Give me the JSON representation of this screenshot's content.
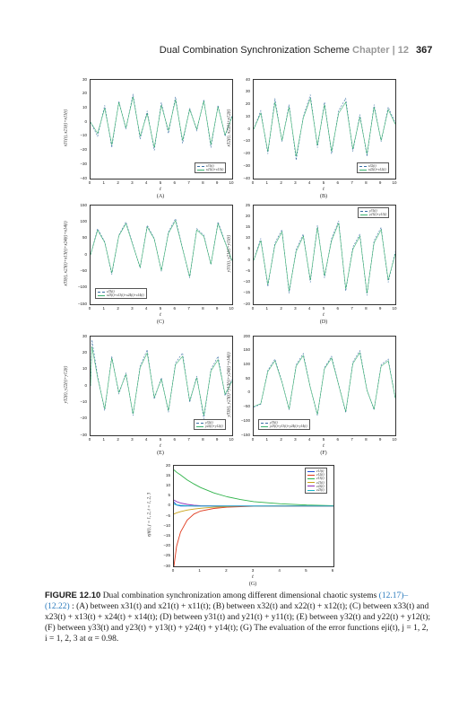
{
  "header": {
    "title": "Dual Combination Synchronization Scheme",
    "chapter": "Chapter | 12",
    "page_number": "367"
  },
  "caption": {
    "label": "FIGURE 12.10",
    "text_a": "Dual combination synchronization among different dimensional chaotic systems",
    "ref": "(12.17)–(12.22)",
    "text_b": ": (A) between x31(t) and x21(t) + x11(t); (B) between x32(t) and x22(t) + x12(t); (C) between x33(t) and x23(t) + x13(t) + x24(t) + x14(t); (D) between y31(t) and y21(t) + y11(t); (E) between y32(t) and y22(t) + y12(t); (F) between y33(t) and y23(t) + y13(t) + y24(t) + y14(t); (G) The evaluation of the error functions eji(t),   j = 1, 2,  i = 1, 2, 3 at α = 0.98."
  },
  "colors": {
    "primary_series": "#3a6ea5",
    "secondary_series": "#3cb371"
  },
  "chart_data": [
    {
      "type": "line",
      "panel_label": "(A)",
      "xlabel": "t",
      "ylabel": "x31(t), x21(t)+x11(t)",
      "xlim": [
        0,
        10
      ],
      "ylim": [
        -40,
        30
      ],
      "xticks": [
        "0",
        "1",
        "2",
        "3",
        "4",
        "5",
        "6",
        "7",
        "8",
        "9",
        "10"
      ],
      "yticks": [
        "30",
        "20",
        "10",
        "0",
        "−10",
        "−20",
        "−30",
        "−40"
      ],
      "legend": [
        "x31(t)",
        "x21(t)+x11(t)"
      ],
      "legend_position": "bottom-right",
      "x": [
        0,
        0.5,
        1,
        1.5,
        2,
        2.5,
        3,
        3.5,
        4,
        4.5,
        5,
        5.5,
        6,
        6.5,
        7,
        7.5,
        8,
        8.5,
        9,
        9.5,
        10
      ],
      "series": [
        {
          "values": [
            0,
            -10,
            12,
            -18,
            15,
            -5,
            20,
            -12,
            8,
            -20,
            14,
            -8,
            18,
            -15,
            10,
            -6,
            16,
            -18,
            12,
            -10,
            5
          ]
        },
        {
          "values": [
            0,
            -8,
            10,
            -16,
            14,
            -4,
            18,
            -10,
            6,
            -18,
            12,
            -6,
            16,
            -13,
            9,
            -5,
            15,
            -16,
            11,
            -9,
            4
          ]
        }
      ]
    },
    {
      "type": "line",
      "panel_label": "(B)",
      "xlabel": "t",
      "ylabel": "x32(t), x22(t)+x12(t)",
      "xlim": [
        0,
        10
      ],
      "ylim": [
        -40,
        40
      ],
      "xticks": [
        "0",
        "1",
        "2",
        "3",
        "4",
        "5",
        "6",
        "7",
        "8",
        "9",
        "10"
      ],
      "yticks": [
        "40",
        "30",
        "20",
        "10",
        "0",
        "−10",
        "−20",
        "−30",
        "−40"
      ],
      "legend": [
        "x32(t)",
        "x22(t)+x12(t)"
      ],
      "legend_position": "bottom-right",
      "x": [
        0,
        0.5,
        1,
        1.5,
        2,
        2.5,
        3,
        3.5,
        4,
        4.5,
        5,
        5.5,
        6,
        6.5,
        7,
        7.5,
        8,
        8.5,
        9,
        9.5,
        10
      ],
      "series": [
        {
          "values": [
            0,
            15,
            -20,
            25,
            -10,
            20,
            -25,
            10,
            28,
            -15,
            22,
            -20,
            15,
            25,
            -18,
            12,
            -22,
            20,
            -10,
            18,
            5
          ]
        },
        {
          "values": [
            0,
            13,
            -18,
            22,
            -9,
            18,
            -22,
            9,
            25,
            -13,
            20,
            -18,
            13,
            22,
            -16,
            10,
            -20,
            18,
            -9,
            16,
            4
          ]
        }
      ]
    },
    {
      "type": "line",
      "panel_label": "(C)",
      "xlabel": "t",
      "ylabel": "x33(t), x23(t)+x13(t)+x24(t)+x14(t)",
      "xlim": [
        0,
        10
      ],
      "ylim": [
        -150,
        150
      ],
      "xticks": [
        "0",
        "1",
        "2",
        "3",
        "4",
        "5",
        "6",
        "7",
        "8",
        "9",
        "10"
      ],
      "yticks": [
        "150",
        "100",
        "50",
        "0",
        "−50",
        "−100",
        "−150"
      ],
      "legend": [
        "x33(t)",
        "x23(t)+x13(t)+x24(t)+x14(t)"
      ],
      "legend_position": "bottom-left",
      "x": [
        0,
        0.5,
        1,
        1.5,
        2,
        2.5,
        3,
        3.5,
        4,
        4.5,
        5,
        5.5,
        6,
        6.5,
        7,
        7.5,
        8,
        8.5,
        9,
        9.5,
        10
      ],
      "series": [
        {
          "values": [
            0,
            80,
            40,
            -60,
            60,
            100,
            30,
            -40,
            90,
            50,
            -50,
            70,
            110,
            20,
            -70,
            80,
            60,
            -30,
            100,
            40,
            -20
          ]
        },
        {
          "values": [
            0,
            75,
            38,
            -55,
            58,
            95,
            28,
            -38,
            85,
            48,
            -48,
            66,
            104,
            18,
            -66,
            76,
            56,
            -28,
            95,
            38,
            -18
          ]
        }
      ]
    },
    {
      "type": "line",
      "panel_label": "(D)",
      "xlabel": "t",
      "ylabel": "y31(t), y21(t)+y11(t)",
      "xlim": [
        0,
        10
      ],
      "ylim": [
        -20,
        25
      ],
      "xticks": [
        "0",
        "1",
        "2",
        "3",
        "4",
        "5",
        "6",
        "7",
        "8",
        "9",
        "10"
      ],
      "yticks": [
        "25",
        "20",
        "15",
        "10",
        "5",
        "0",
        "−5",
        "−10",
        "−15",
        "−20"
      ],
      "legend": [
        "y31(t)",
        "y21(t)+y11(t)"
      ],
      "legend_position": "top-right",
      "x": [
        0,
        0.5,
        1,
        1.5,
        2,
        2.5,
        3,
        3.5,
        4,
        4.5,
        5,
        5.5,
        6,
        6.5,
        7,
        7.5,
        8,
        8.5,
        9,
        9.5,
        10
      ],
      "series": [
        {
          "values": [
            0,
            10,
            -12,
            8,
            14,
            -15,
            5,
            12,
            -10,
            16,
            -8,
            10,
            18,
            -14,
            6,
            12,
            -16,
            9,
            15,
            -10,
            4
          ]
        },
        {
          "values": [
            0,
            9,
            -11,
            7,
            13,
            -14,
            4,
            11,
            -9,
            15,
            -7,
            9,
            17,
            -13,
            5,
            11,
            -15,
            8,
            14,
            -9,
            3
          ]
        }
      ]
    },
    {
      "type": "line",
      "panel_label": "(E)",
      "xlabel": "t",
      "ylabel": "y32(t), y22(t)+y12(t)",
      "xlim": [
        0,
        10
      ],
      "ylim": [
        -30,
        30
      ],
      "xticks": [
        "0",
        "1",
        "2",
        "3",
        "4",
        "5",
        "6",
        "7",
        "8",
        "9",
        "10"
      ],
      "yticks": [
        "30",
        "20",
        "10",
        "0",
        "−10",
        "−20",
        "−30"
      ],
      "legend": [
        "y32(t)",
        "y22(t)+y12(t)"
      ],
      "legend_position": "bottom-right",
      "x": [
        0,
        0.1,
        0.5,
        1,
        1.5,
        2,
        2.5,
        3,
        3.5,
        4,
        4.5,
        5,
        5.5,
        6,
        6.5,
        7,
        7.5,
        8,
        8.5,
        9,
        9.5,
        10
      ],
      "series": [
        {
          "values": [
            0,
            28,
            6,
            -15,
            18,
            -5,
            8,
            -18,
            12,
            22,
            -8,
            5,
            -16,
            14,
            20,
            -10,
            6,
            -20,
            10,
            18,
            -6,
            4
          ]
        },
        {
          "values": [
            0,
            24,
            5,
            -14,
            17,
            -4,
            7,
            -17,
            11,
            20,
            -7,
            4,
            -15,
            13,
            18,
            -9,
            5,
            -18,
            9,
            16,
            -5,
            3
          ]
        }
      ]
    },
    {
      "type": "line",
      "panel_label": "(F)",
      "xlabel": "t",
      "ylabel": "y33(t), y23(t)+y13(t)+y24(t)+y14(t)",
      "xlim": [
        0,
        10
      ],
      "ylim": [
        -150,
        200
      ],
      "xticks": [
        "0",
        "1",
        "2",
        "3",
        "4",
        "5",
        "6",
        "7",
        "8",
        "9",
        "10"
      ],
      "yticks": [
        "200",
        "150",
        "100",
        "50",
        "0",
        "−50",
        "−100",
        "−150"
      ],
      "legend": [
        "y33(t)",
        "y23(t)+y13(t)+y24(t)+y14(t)"
      ],
      "legend_position": "bottom-left",
      "x": [
        0,
        0.5,
        1,
        1.5,
        2,
        2.5,
        3,
        3.5,
        4,
        4.5,
        5,
        5.5,
        6,
        6.5,
        7,
        7.5,
        8,
        8.5,
        9,
        9.5,
        10
      ],
      "series": [
        {
          "values": [
            -50,
            -40,
            80,
            120,
            40,
            -60,
            100,
            140,
            20,
            -80,
            90,
            130,
            30,
            -70,
            110,
            150,
            10,
            -60,
            100,
            120,
            -20
          ]
        },
        {
          "values": [
            -48,
            -38,
            76,
            114,
            38,
            -57,
            95,
            133,
            19,
            -76,
            86,
            124,
            28,
            -66,
            104,
            143,
            9,
            -57,
            95,
            114,
            -19
          ]
        }
      ]
    },
    {
      "type": "line",
      "panel_label": "(G)",
      "xlabel": "t",
      "ylabel": "eji(t), j = 1, 2, i = 1, 2, 3",
      "xlim": [
        0,
        6
      ],
      "ylim": [
        -30,
        20
      ],
      "xticks": [
        "0",
        "1",
        "2",
        "3",
        "4",
        "5",
        "6"
      ],
      "yticks": [
        "20",
        "15",
        "10",
        "5",
        "0",
        "−5",
        "−10",
        "−15",
        "−20",
        "−25",
        "−30"
      ],
      "legend_position": "top-right",
      "x": [
        0,
        0.1,
        0.25,
        0.5,
        0.75,
        1,
        1.5,
        2,
        2.5,
        3,
        4,
        5,
        6
      ],
      "series": [
        {
          "name": "e11(t)",
          "color": "#1f4fd6",
          "values": [
            2,
            0.5,
            0,
            0,
            0,
            0,
            0,
            0,
            0,
            0,
            0,
            0,
            0
          ]
        },
        {
          "name": "e12(t)",
          "color": "#e03a1e",
          "values": [
            -30,
            -20,
            -13,
            -7,
            -4,
            -2.5,
            -1.2,
            -0.6,
            -0.3,
            -0.15,
            0,
            0,
            0
          ]
        },
        {
          "name": "e13(t)",
          "color": "#2fb34a",
          "values": [
            18,
            16.8,
            15.5,
            13,
            11,
            9.2,
            6.5,
            4.6,
            3.2,
            2.2,
            1.1,
            0.5,
            0.2
          ]
        },
        {
          "name": "e21(t)",
          "color": "#c9a21a",
          "values": [
            -4,
            -3.4,
            -2.8,
            -2,
            -1.5,
            -1.1,
            -0.6,
            -0.3,
            -0.15,
            -0.07,
            0,
            0,
            0
          ]
        },
        {
          "name": "e22(t)",
          "color": "#8e2bb8",
          "values": [
            3,
            2.2,
            1.5,
            0.8,
            0.4,
            0.2,
            0.05,
            0,
            0,
            0,
            0,
            0,
            0
          ]
        },
        {
          "name": "e23(t)",
          "color": "#17b6c9",
          "values": [
            1,
            0.6,
            0.3,
            0.1,
            0,
            0,
            0,
            0,
            0,
            0,
            0,
            0,
            0
          ]
        }
      ]
    }
  ]
}
